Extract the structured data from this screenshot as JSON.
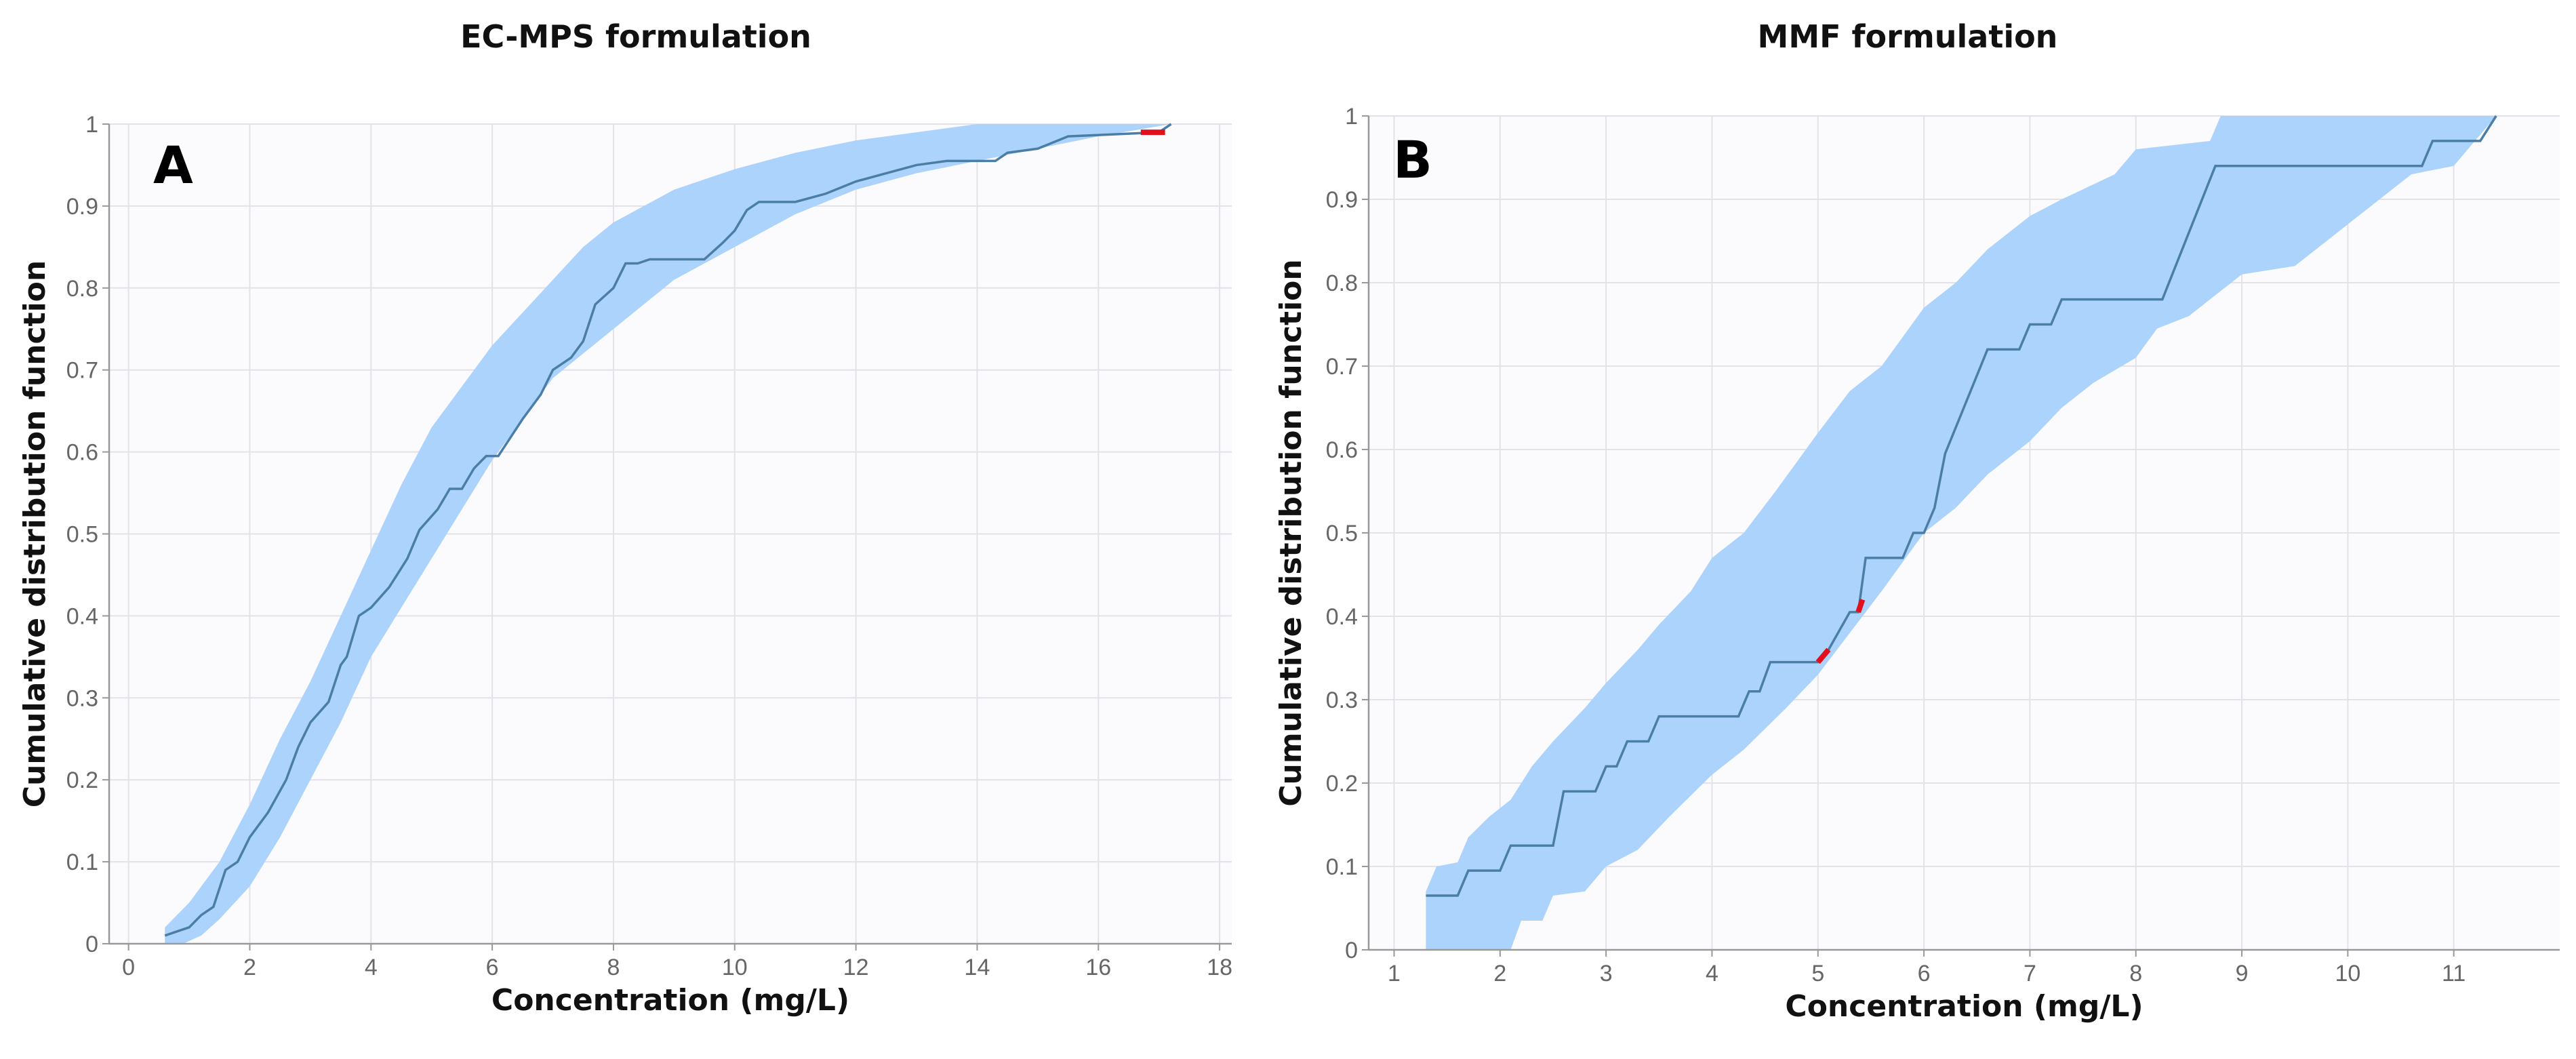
{
  "chart_data": [
    {
      "type": "line",
      "panel_label": "A",
      "title": "EC-MPS formulation",
      "xlabel": "Concentration (mg/L)",
      "ylabel": "Cumulative distribution function",
      "xlim": [
        -0.32,
        18.2
      ],
      "ylim": [
        0,
        1
      ],
      "xticks": [
        "0",
        "2",
        "4",
        "6",
        "8",
        "10",
        "12",
        "14",
        "16",
        "18"
      ],
      "yticks": [
        "0",
        "0.1",
        "0.2",
        "0.3",
        "0.4",
        "0.5",
        "0.6",
        "0.7",
        "0.8",
        "0.9",
        "1"
      ],
      "grid": true,
      "colors": {
        "band": "#acd3fb",
        "line": "#4a7ea6",
        "outside": "#e0101c",
        "plot_bg": "#fbfbfe",
        "grid": "#e2e2e8"
      },
      "series": [
        {
          "name": "observed",
          "points": [
            [
              0.6,
              0.01
            ],
            [
              1.0,
              0.02
            ],
            [
              1.2,
              0.035
            ],
            [
              1.4,
              0.045
            ],
            [
              1.6,
              0.09
            ],
            [
              1.8,
              0.1
            ],
            [
              2.0,
              0.13
            ],
            [
              2.3,
              0.16
            ],
            [
              2.6,
              0.2
            ],
            [
              2.8,
              0.24
            ],
            [
              3.0,
              0.27
            ],
            [
              3.3,
              0.295
            ],
            [
              3.5,
              0.34
            ],
            [
              3.6,
              0.35
            ],
            [
              3.8,
              0.4
            ],
            [
              4.0,
              0.41
            ],
            [
              4.3,
              0.435
            ],
            [
              4.6,
              0.47
            ],
            [
              4.8,
              0.505
            ],
            [
              5.1,
              0.53
            ],
            [
              5.3,
              0.555
            ],
            [
              5.5,
              0.555
            ],
            [
              5.7,
              0.58
            ],
            [
              5.9,
              0.595
            ],
            [
              6.1,
              0.595
            ],
            [
              6.5,
              0.64
            ],
            [
              6.8,
              0.67
            ],
            [
              7.0,
              0.7
            ],
            [
              7.3,
              0.715
            ],
            [
              7.5,
              0.735
            ],
            [
              7.7,
              0.78
            ],
            [
              8.0,
              0.8
            ],
            [
              8.2,
              0.83
            ],
            [
              8.4,
              0.83
            ],
            [
              8.6,
              0.835
            ],
            [
              9.5,
              0.835
            ],
            [
              9.8,
              0.855
            ],
            [
              10.0,
              0.87
            ],
            [
              10.2,
              0.895
            ],
            [
              10.4,
              0.905
            ],
            [
              11.0,
              0.905
            ],
            [
              11.5,
              0.915
            ],
            [
              12.0,
              0.93
            ],
            [
              12.5,
              0.94
            ],
            [
              13.0,
              0.95
            ],
            [
              13.5,
              0.955
            ],
            [
              14.3,
              0.955
            ],
            [
              14.5,
              0.965
            ],
            [
              15.0,
              0.97
            ],
            [
              15.5,
              0.985
            ],
            [
              17.0,
              0.99
            ],
            [
              17.2,
              1.0
            ]
          ]
        },
        {
          "name": "ci_upper",
          "points": [
            [
              0.6,
              0.02
            ],
            [
              1.0,
              0.05
            ],
            [
              1.5,
              0.1
            ],
            [
              2.0,
              0.17
            ],
            [
              2.5,
              0.25
            ],
            [
              3.0,
              0.32
            ],
            [
              3.5,
              0.4
            ],
            [
              4.0,
              0.48
            ],
            [
              4.5,
              0.56
            ],
            [
              5.0,
              0.63
            ],
            [
              5.5,
              0.68
            ],
            [
              6.0,
              0.73
            ],
            [
              6.5,
              0.77
            ],
            [
              7.0,
              0.81
            ],
            [
              7.5,
              0.85
            ],
            [
              8.0,
              0.88
            ],
            [
              9.0,
              0.92
            ],
            [
              10.0,
              0.945
            ],
            [
              11.0,
              0.965
            ],
            [
              12.0,
              0.98
            ],
            [
              13.0,
              0.99
            ],
            [
              14.0,
              1.0
            ],
            [
              17.2,
              1.0
            ]
          ]
        },
        {
          "name": "ci_lower",
          "points": [
            [
              0.6,
              0.0
            ],
            [
              0.9,
              0.0
            ],
            [
              1.2,
              0.01
            ],
            [
              1.5,
              0.03
            ],
            [
              2.0,
              0.07
            ],
            [
              2.5,
              0.13
            ],
            [
              3.0,
              0.2
            ],
            [
              3.5,
              0.27
            ],
            [
              4.0,
              0.35
            ],
            [
              4.5,
              0.41
            ],
            [
              5.0,
              0.47
            ],
            [
              5.5,
              0.53
            ],
            [
              6.0,
              0.59
            ],
            [
              6.5,
              0.64
            ],
            [
              7.0,
              0.69
            ],
            [
              7.5,
              0.72
            ],
            [
              8.0,
              0.75
            ],
            [
              8.5,
              0.78
            ],
            [
              9.0,
              0.81
            ],
            [
              9.5,
              0.83
            ],
            [
              10.0,
              0.85
            ],
            [
              11.0,
              0.89
            ],
            [
              12.0,
              0.92
            ],
            [
              13.0,
              0.94
            ],
            [
              14.0,
              0.955
            ],
            [
              15.0,
              0.97
            ],
            [
              16.0,
              0.985
            ],
            [
              17.2,
              1.0
            ]
          ]
        },
        {
          "name": "outside_ci",
          "points": [
            [
              16.7,
              0.99
            ],
            [
              17.1,
              0.99
            ]
          ]
        }
      ]
    },
    {
      "type": "line",
      "panel_label": "B",
      "title": "MMF formulation",
      "xlabel": "Concentration (mg/L)",
      "ylabel": "Cumulative distribution function",
      "xlim": [
        0.76,
        12.0
      ],
      "ylim": [
        0,
        1
      ],
      "xticks": [
        "1",
        "2",
        "3",
        "4",
        "5",
        "6",
        "7",
        "8",
        "9",
        "10",
        "11"
      ],
      "yticks": [
        "0",
        "0.1",
        "0.2",
        "0.3",
        "0.4",
        "0.5",
        "0.6",
        "0.7",
        "0.8",
        "0.9",
        "1"
      ],
      "grid": true,
      "colors": {
        "band": "#acd3fb",
        "line": "#4a7ea6",
        "outside": "#e0101c",
        "plot_bg": "#fbfbfe",
        "grid": "#e2e2e8"
      },
      "series": [
        {
          "name": "observed",
          "points": [
            [
              1.3,
              0.065
            ],
            [
              1.6,
              0.065
            ],
            [
              1.7,
              0.095
            ],
            [
              2.0,
              0.095
            ],
            [
              2.1,
              0.125
            ],
            [
              2.5,
              0.125
            ],
            [
              2.6,
              0.19
            ],
            [
              2.9,
              0.19
            ],
            [
              3.0,
              0.22
            ],
            [
              3.1,
              0.22
            ],
            [
              3.2,
              0.25
            ],
            [
              3.4,
              0.25
            ],
            [
              3.5,
              0.28
            ],
            [
              4.25,
              0.28
            ],
            [
              4.35,
              0.31
            ],
            [
              4.45,
              0.31
            ],
            [
              4.55,
              0.345
            ],
            [
              5.0,
              0.345
            ],
            [
              5.1,
              0.36
            ],
            [
              5.3,
              0.405
            ],
            [
              5.38,
              0.405
            ],
            [
              5.45,
              0.47
            ],
            [
              5.8,
              0.47
            ],
            [
              5.9,
              0.5
            ],
            [
              6.0,
              0.5
            ],
            [
              6.1,
              0.53
            ],
            [
              6.2,
              0.595
            ],
            [
              6.6,
              0.72
            ],
            [
              6.9,
              0.72
            ],
            [
              7.0,
              0.75
            ],
            [
              7.2,
              0.75
            ],
            [
              7.3,
              0.78
            ],
            [
              8.25,
              0.78
            ],
            [
              8.75,
              0.94
            ],
            [
              10.7,
              0.94
            ],
            [
              10.8,
              0.97
            ],
            [
              11.25,
              0.97
            ],
            [
              11.4,
              1.0
            ]
          ]
        },
        {
          "name": "ci_upper",
          "points": [
            [
              1.3,
              0.07
            ],
            [
              1.4,
              0.1
            ],
            [
              1.6,
              0.105
            ],
            [
              1.7,
              0.135
            ],
            [
              1.9,
              0.16
            ],
            [
              2.1,
              0.18
            ],
            [
              2.3,
              0.22
            ],
            [
              2.5,
              0.25
            ],
            [
              2.8,
              0.29
            ],
            [
              3.0,
              0.32
            ],
            [
              3.3,
              0.36
            ],
            [
              3.5,
              0.39
            ],
            [
              3.8,
              0.43
            ],
            [
              4.0,
              0.47
            ],
            [
              4.3,
              0.5
            ],
            [
              4.6,
              0.55
            ],
            [
              5.0,
              0.62
            ],
            [
              5.3,
              0.67
            ],
            [
              5.6,
              0.7
            ],
            [
              6.0,
              0.77
            ],
            [
              6.3,
              0.8
            ],
            [
              6.6,
              0.84
            ],
            [
              7.0,
              0.88
            ],
            [
              7.3,
              0.9
            ],
            [
              7.8,
              0.93
            ],
            [
              8.0,
              0.96
            ],
            [
              8.7,
              0.97
            ],
            [
              8.8,
              1.0
            ],
            [
              11.4,
              1.0
            ]
          ]
        },
        {
          "name": "ci_lower",
          "points": [
            [
              1.3,
              0.0
            ],
            [
              2.1,
              0.0
            ],
            [
              2.2,
              0.035
            ],
            [
              2.4,
              0.035
            ],
            [
              2.5,
              0.065
            ],
            [
              2.8,
              0.07
            ],
            [
              3.0,
              0.1
            ],
            [
              3.3,
              0.12
            ],
            [
              3.6,
              0.16
            ],
            [
              4.0,
              0.21
            ],
            [
              4.3,
              0.24
            ],
            [
              4.7,
              0.29
            ],
            [
              5.0,
              0.33
            ],
            [
              5.3,
              0.38
            ],
            [
              5.6,
              0.43
            ],
            [
              6.0,
              0.5
            ],
            [
              6.3,
              0.53
            ],
            [
              6.6,
              0.57
            ],
            [
              7.0,
              0.61
            ],
            [
              7.3,
              0.65
            ],
            [
              7.6,
              0.68
            ],
            [
              8.0,
              0.71
            ],
            [
              8.2,
              0.745
            ],
            [
              8.5,
              0.76
            ],
            [
              8.8,
              0.79
            ],
            [
              9.0,
              0.81
            ],
            [
              9.5,
              0.82
            ],
            [
              10.0,
              0.87
            ],
            [
              10.3,
              0.9
            ],
            [
              10.6,
              0.93
            ],
            [
              11.0,
              0.94
            ],
            [
              11.4,
              1.0
            ]
          ]
        },
        {
          "name": "outside_ci",
          "points": [
            [
              5.0,
              0.345
            ],
            [
              5.1,
              0.36
            ],
            [
              5.38,
              0.405
            ],
            [
              5.42,
              0.42
            ]
          ]
        }
      ]
    }
  ]
}
